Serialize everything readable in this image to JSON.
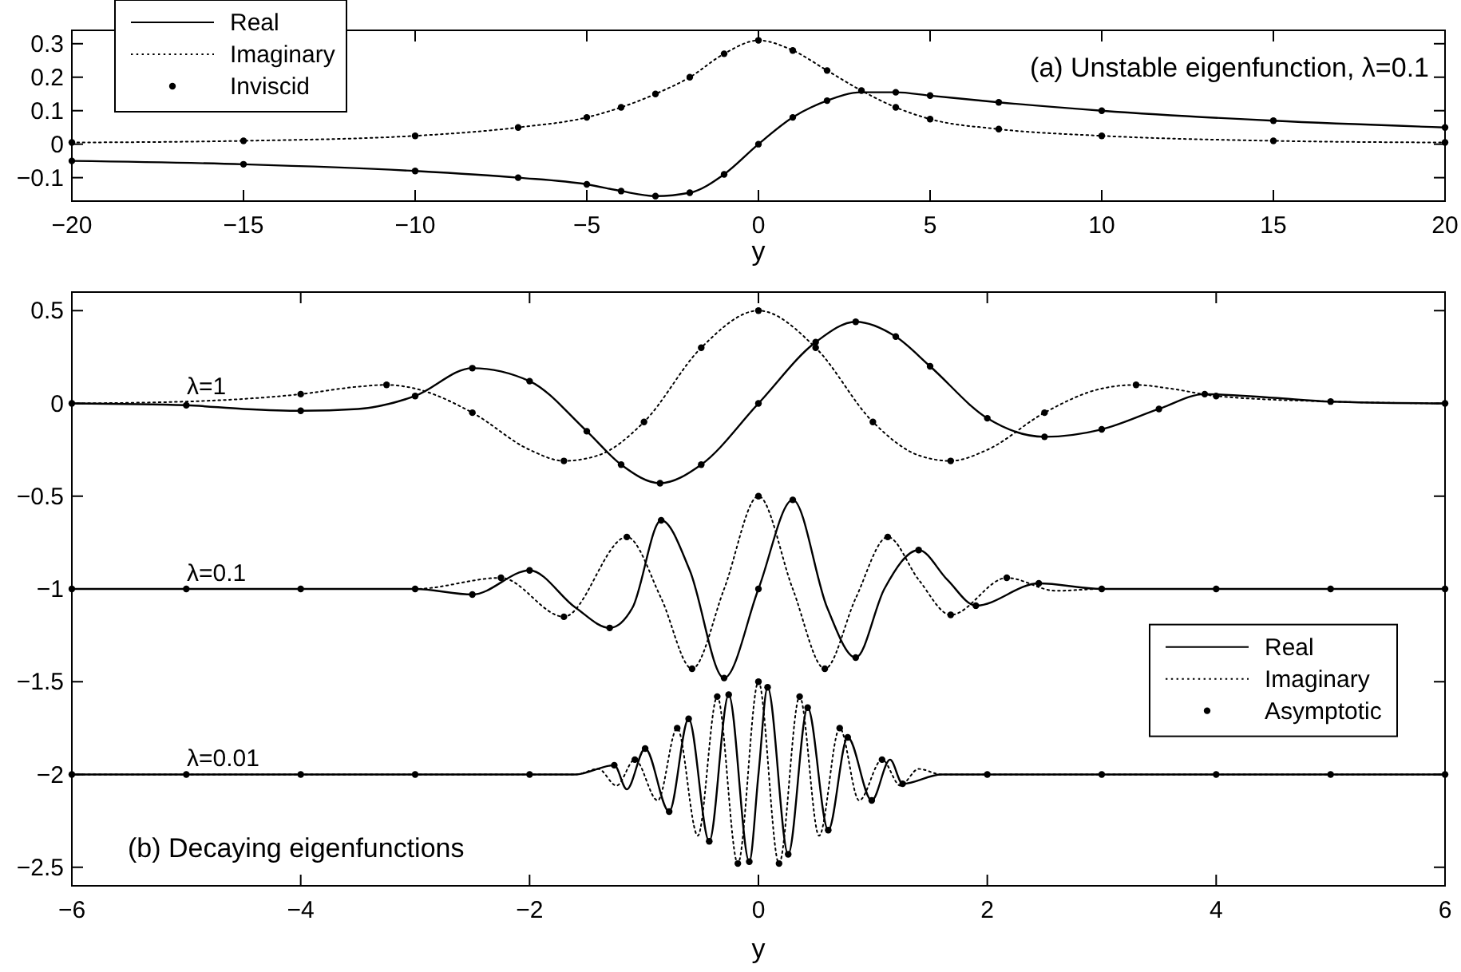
{
  "chart_data": [
    {
      "type": "line",
      "xlabel": "y",
      "xlim": [
        -20,
        20
      ],
      "xticks": [
        -20,
        -15,
        -10,
        -5,
        0,
        5,
        10,
        15,
        20
      ],
      "ylim": [
        -0.17,
        0.34
      ],
      "yticks": [
        -0.1,
        0,
        0.1,
        0.2,
        0.3
      ],
      "grid": false,
      "legend": "top left",
      "annotations": [
        "(a) Unstable eigenfunction, λ=0.1"
      ],
      "series": [
        {
          "name": "Real",
          "line_style": "solid",
          "color": "#000000",
          "x": [
            -20,
            -15,
            -10,
            -7,
            -5,
            -4,
            -3,
            -2,
            -1,
            0,
            1,
            2,
            3,
            4,
            5,
            7,
            10,
            15,
            20
          ],
          "values": [
            -0.05,
            -0.06,
            -0.08,
            -0.1,
            -0.12,
            -0.14,
            -0.155,
            -0.145,
            -0.09,
            0,
            0.08,
            0.13,
            0.155,
            0.155,
            0.145,
            0.125,
            0.1,
            0.07,
            0.05
          ]
        },
        {
          "name": "Imaginary",
          "line_style": "dotted",
          "color": "#000000",
          "x": [
            -20,
            -15,
            -10,
            -7,
            -5,
            -4,
            -3,
            -2,
            -1,
            0,
            1,
            2,
            3,
            4,
            5,
            7,
            10,
            15,
            20
          ],
          "values": [
            0.005,
            0.01,
            0.025,
            0.05,
            0.08,
            0.11,
            0.15,
            0.2,
            0.27,
            0.31,
            0.28,
            0.22,
            0.16,
            0.11,
            0.075,
            0.045,
            0.025,
            0.01,
            0.005
          ]
        },
        {
          "name": "Inviscid",
          "type": "scatter",
          "marker": "circle",
          "color": "#000000",
          "x": [
            -20,
            -15,
            -10,
            -7,
            -5,
            -4,
            -3,
            -2,
            -1,
            0,
            1,
            2,
            3,
            4,
            5,
            7,
            10,
            15,
            20,
            -20,
            -15,
            -10,
            -7,
            -5,
            -4,
            -3,
            -2,
            -1,
            0,
            1,
            2,
            3,
            4,
            5,
            7,
            10,
            15,
            20
          ],
          "values": [
            -0.05,
            -0.06,
            -0.08,
            -0.1,
            -0.12,
            -0.14,
            -0.155,
            -0.145,
            -0.09,
            0,
            0.08,
            0.13,
            null,
            0.155,
            0.145,
            0.125,
            0.1,
            0.07,
            0.05,
            0.005,
            0.01,
            0.025,
            0.05,
            0.08,
            0.11,
            0.15,
            0.2,
            0.27,
            0.31,
            0.28,
            0.22,
            0.16,
            0.11,
            0.075,
            0.045,
            0.025,
            0.01,
            0.005
          ]
        }
      ]
    },
    {
      "type": "line",
      "xlabel": "y",
      "xlim": [
        -6,
        6
      ],
      "xticks": [
        -6,
        -4,
        -2,
        0,
        2,
        4,
        6
      ],
      "ylim": [
        -2.6,
        0.6
      ],
      "yticks": [
        -2.5,
        -2,
        -1.5,
        -1,
        -0.5,
        0,
        0.5
      ],
      "grid": false,
      "legend": "right",
      "annotations": [
        "λ=1",
        "λ=0.1",
        "λ=0.01",
        "(b) Decaying eigenfunctions"
      ],
      "series": [
        {
          "name": "Real",
          "line_style": "solid",
          "color": "#000000",
          "x": [
            -6,
            -5,
            -4.5,
            -4,
            -3.5,
            -3,
            -2.5,
            -2,
            -1.5,
            -1.2,
            -0.86,
            -0.5,
            0,
            0.5,
            0.85,
            1.2,
            1.5,
            2,
            2.5,
            3,
            3.5,
            3.9,
            4.5,
            5,
            6
          ],
          "values": [
            0,
            -0.01,
            -0.03,
            -0.04,
            -0.03,
            0.04,
            0.19,
            0.12,
            -0.15,
            -0.33,
            -0.43,
            -0.33,
            0,
            0.33,
            0.44,
            0.36,
            0.2,
            -0.08,
            -0.18,
            -0.14,
            -0.03,
            0.05,
            0.03,
            0.01,
            0
          ]
        },
        {
          "name": "Imaginary",
          "line_style": "dotted",
          "color": "#000000",
          "x": [
            -6,
            -5,
            -4,
            -3.5,
            -3.25,
            -3,
            -2.5,
            -2,
            -1.7,
            -1.4,
            -1,
            -0.5,
            0,
            0.5,
            1,
            1.4,
            1.68,
            2,
            2.5,
            3,
            3.3,
            3.6,
            4,
            5,
            6
          ],
          "values": [
            0,
            0.01,
            0.05,
            0.09,
            0.1,
            0.08,
            -0.05,
            -0.25,
            -0.31,
            -0.28,
            -0.1,
            0.3,
            0.5,
            0.3,
            -0.1,
            -0.28,
            -0.31,
            -0.25,
            -0.05,
            0.08,
            0.1,
            0.08,
            0.04,
            0.01,
            0
          ]
        },
        {
          "line_style": "solid",
          "color": "#000000",
          "x": [
            -6,
            -3,
            -2.5,
            -2,
            -1.6,
            -1.3,
            -1.1,
            -0.85,
            -0.6,
            -0.3,
            0,
            0.3,
            0.6,
            0.85,
            1.1,
            1.4,
            1.65,
            1.9,
            2.45,
            3,
            6
          ],
          "values": [
            -1,
            -1,
            -1.03,
            -0.9,
            -1.1,
            -1.21,
            -1.1,
            -0.63,
            -0.9,
            -1.48,
            -1,
            -0.52,
            -1.1,
            -1.37,
            -1,
            -0.79,
            -0.95,
            -1.09,
            -0.97,
            -1,
            -1
          ]
        },
        {
          "line_style": "dotted",
          "color": "#000000",
          "x": [
            -6,
            -3,
            -2.25,
            -1.7,
            -1.15,
            -0.85,
            -0.58,
            -0.3,
            0,
            0.3,
            0.58,
            0.85,
            1.13,
            1.4,
            1.68,
            2.17,
            2.6,
            3,
            6
          ],
          "values": [
            -1,
            -1,
            -0.94,
            -1.15,
            -0.72,
            -1.05,
            -1.43,
            -1,
            -0.5,
            -1,
            -1.43,
            -1.05,
            -0.72,
            -0.95,
            -1.14,
            -0.94,
            -1.01,
            -1,
            -1
          ]
        },
        {
          "line_style": "solid",
          "color": "#000000",
          "x": [
            -6,
            -1.6,
            -1.26,
            -1.15,
            -0.99,
            -0.78,
            -0.61,
            -0.43,
            -0.26,
            -0.08,
            0,
            0.08,
            0.26,
            0.43,
            0.61,
            0.78,
            0.99,
            1.15,
            1.26,
            1.6,
            6
          ],
          "values": [
            -2,
            -2,
            -1.95,
            -2.08,
            -1.86,
            -2.2,
            -1.7,
            -2.36,
            -1.57,
            -2.47,
            -2,
            -1.53,
            -2.43,
            -1.64,
            -2.3,
            -1.8,
            -2.14,
            -1.92,
            -2.05,
            -2,
            -2
          ]
        },
        {
          "line_style": "dotted",
          "color": "#000000",
          "x": [
            -6,
            -1.6,
            -1.4,
            -1.24,
            -1.08,
            -0.88,
            -0.71,
            -0.53,
            -0.36,
            -0.18,
            0,
            0.18,
            0.36,
            0.53,
            0.71,
            0.88,
            1.08,
            1.24,
            1.4,
            1.6,
            6
          ],
          "values": [
            -2,
            -2,
            -1.97,
            -2.06,
            -1.92,
            -2.14,
            -1.75,
            -2.33,
            -1.58,
            -2.48,
            -1.5,
            -2.48,
            -1.58,
            -2.33,
            -1.75,
            -2.14,
            -1.92,
            -2.06,
            -1.97,
            -2,
            -2
          ]
        },
        {
          "name": "Asymptotic",
          "type": "scatter",
          "marker": "circle",
          "color": "#000000",
          "x": [
            -6,
            -5,
            -4,
            -3,
            -2.5,
            -2,
            -1.5,
            -1.2,
            -0.86,
            -0.5,
            0,
            0.5,
            0.85,
            1.2,
            1.5,
            2,
            2.5,
            3,
            3.5,
            3.9,
            5,
            6,
            -4,
            -3.25,
            -2.5,
            -1.7,
            -1,
            -0.5,
            0,
            0.5,
            1,
            1.68,
            2.5,
            3.3,
            4,
            -6,
            -5,
            -4,
            -3,
            -2.5,
            -2,
            -1.3,
            -0.85,
            -0.3,
            0,
            0.3,
            0.85,
            1.4,
            1.9,
            2.45,
            3,
            4,
            5,
            6,
            -2.25,
            -1.7,
            -1.15,
            -0.58,
            0,
            0.58,
            1.13,
            1.68,
            2.17,
            -6,
            -5,
            -4,
            -3,
            -2,
            -1.26,
            -0.99,
            -0.78,
            -0.61,
            -0.43,
            -0.26,
            -0.08,
            0.08,
            0.26,
            0.43,
            0.61,
            0.78,
            0.99,
            1.26,
            2,
            3,
            4,
            5,
            6,
            -1.08,
            -0.71,
            -0.36,
            -0.18,
            0,
            0.18,
            0.36,
            0.71,
            1.08
          ],
          "values": [
            0,
            -0.01,
            -0.04,
            0.04,
            0.19,
            0.12,
            -0.15,
            -0.33,
            -0.43,
            -0.33,
            0,
            0.33,
            0.44,
            0.36,
            0.2,
            -0.08,
            -0.18,
            -0.14,
            -0.03,
            0.05,
            0.01,
            0,
            0.05,
            0.1,
            -0.05,
            -0.31,
            -0.1,
            0.3,
            0.5,
            0.3,
            -0.1,
            -0.31,
            -0.05,
            0.1,
            0.04,
            -1,
            -1,
            -1,
            -1,
            -1.03,
            -0.9,
            -1.21,
            -0.63,
            -1.48,
            -1,
            -0.52,
            -1.37,
            -0.79,
            -1.09,
            -0.97,
            -1,
            -1,
            -1,
            -1,
            -0.94,
            -1.15,
            -0.72,
            -1.43,
            -0.5,
            -1.43,
            -0.72,
            -1.14,
            -0.94,
            -2,
            -2,
            -2,
            -2,
            -2,
            -1.95,
            -1.86,
            -2.2,
            -1.7,
            -2.36,
            -1.57,
            -2.47,
            -1.53,
            -2.43,
            -1.64,
            -2.3,
            -1.8,
            -2.14,
            -2.05,
            -2,
            -2,
            -2,
            -2,
            -2,
            -1.92,
            -1.75,
            -1.58,
            -2.48,
            -1.5,
            -2.48,
            -1.58,
            -1.75,
            -1.92
          ]
        }
      ]
    }
  ]
}
